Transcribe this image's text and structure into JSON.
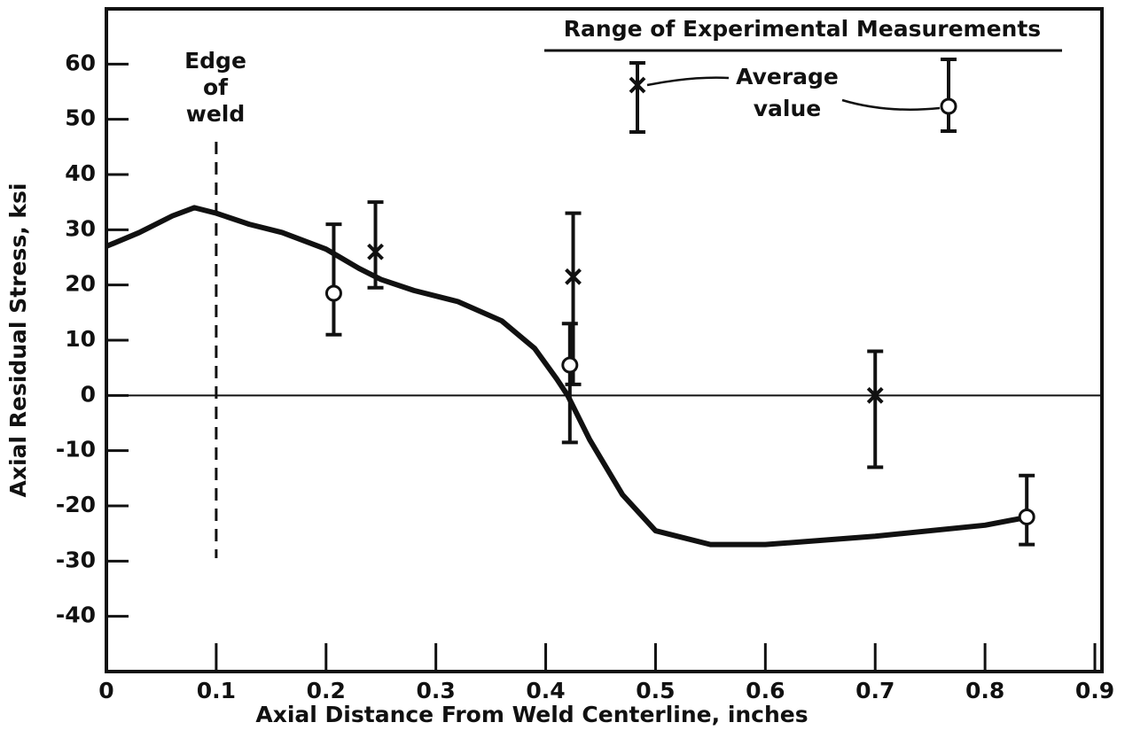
{
  "chart_data": {
    "type": "line",
    "x_label": "Axial Distance From Weld Centerline, inches",
    "y_label": "Axial Residual Stress, ksi",
    "xlim": [
      0,
      0.9
    ],
    "ylim": [
      -50,
      70
    ],
    "xticks": [
      0,
      0.1,
      0.2,
      0.3,
      0.4,
      0.5,
      0.6,
      0.7,
      0.8,
      0.9
    ],
    "yticks": [
      -40,
      -30,
      -20,
      -10,
      0,
      10,
      20,
      30,
      40,
      50,
      60
    ],
    "color": "#111111",
    "curve": {
      "x": [
        0,
        0.03,
        0.06,
        0.08,
        0.1,
        0.13,
        0.16,
        0.2,
        0.23,
        0.25,
        0.28,
        0.32,
        0.36,
        0.39,
        0.41,
        0.42,
        0.44,
        0.47,
        0.5,
        0.55,
        0.6,
        0.7,
        0.8,
        0.84
      ],
      "y": [
        27,
        29.5,
        32.5,
        34,
        33,
        31,
        29.5,
        26.5,
        23,
        21,
        19,
        17,
        13.5,
        8.5,
        3,
        0,
        -8,
        -18,
        -24.5,
        -27,
        -27,
        -25.5,
        -23.5,
        -22
      ]
    },
    "points": [
      {
        "marker": "x",
        "x": [
          0.245,
          0.425,
          0.7
        ],
        "y": [
          26,
          21.5,
          0
        ],
        "low": [
          19.5,
          2,
          -13
        ],
        "high": [
          35,
          33,
          8
        ]
      },
      {
        "marker": "o",
        "x": [
          0.207,
          0.422,
          0.838
        ],
        "y": [
          18.5,
          5.5,
          -22
        ],
        "low": [
          11,
          -8.5,
          -27
        ],
        "high": [
          31,
          13,
          -14.5
        ]
      }
    ],
    "edge_x": 0.1,
    "edge_label": [
      "Edge",
      "of",
      "weld"
    ],
    "legend_title": "Range of Experimental Measurements",
    "legend_label": [
      "Average",
      "value"
    ]
  }
}
